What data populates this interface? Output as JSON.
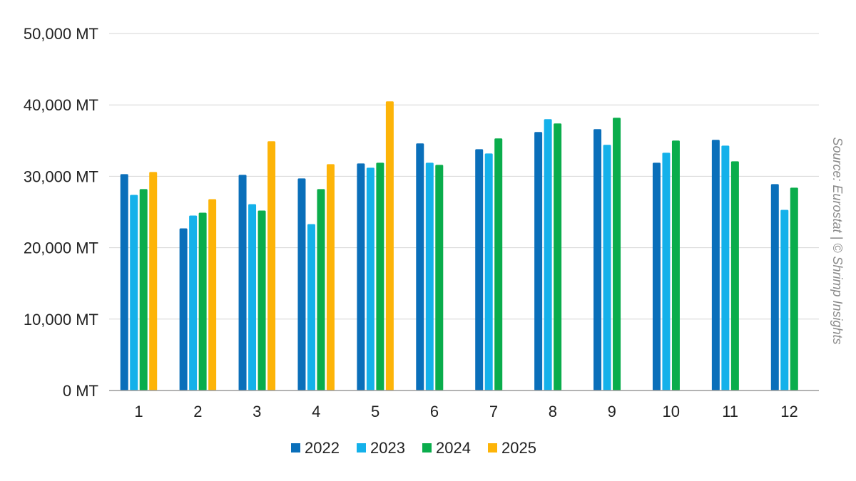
{
  "chart_data": {
    "type": "bar",
    "categories": [
      "1",
      "2",
      "3",
      "4",
      "5",
      "6",
      "7",
      "8",
      "9",
      "10",
      "11",
      "12"
    ],
    "series": [
      {
        "name": "2022",
        "color": "#0a6fba",
        "values": [
          30300,
          22700,
          30200,
          29700,
          31800,
          34600,
          33800,
          36200,
          36600,
          31900,
          35100,
          28900
        ]
      },
      {
        "name": "2023",
        "color": "#14b1ea",
        "values": [
          27400,
          24500,
          26100,
          23300,
          31200,
          31900,
          33200,
          38000,
          34400,
          33300,
          34300,
          25300
        ]
      },
      {
        "name": "2024",
        "color": "#0aad4c",
        "values": [
          28200,
          24900,
          25200,
          28200,
          31900,
          31600,
          35300,
          37400,
          38200,
          35000,
          32100,
          28400
        ]
      },
      {
        "name": "2025",
        "color": "#fdb408",
        "values": [
          30600,
          26800,
          34900,
          31700,
          40500,
          null,
          null,
          null,
          null,
          null,
          null,
          null
        ]
      }
    ],
    "yticks": [
      "0 MT",
      "10,000 MT",
      "20,000 MT",
      "30,000 MT",
      "40,000 MT",
      "50,000 MT"
    ],
    "ylim": [
      0,
      50000
    ],
    "grid": true,
    "legend_position": "bottom",
    "source_note": "Source: Eurostat | © Shrimp Insights"
  }
}
